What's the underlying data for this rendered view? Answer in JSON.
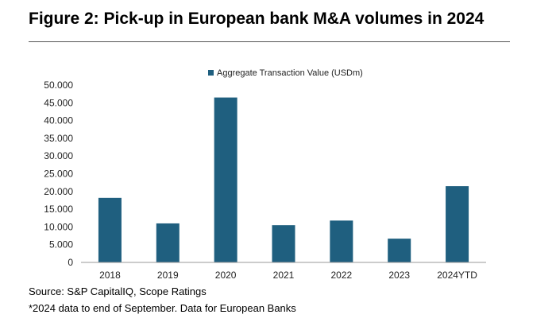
{
  "header": {
    "title": "Figure 2: Pick-up in European bank M&A volumes in 2024"
  },
  "footer": {
    "source": "Source: S&P CapitalIQ, Scope Ratings",
    "note": "*2024 data to end of September. Data for European Banks"
  },
  "chart_data": {
    "type": "bar",
    "categories": [
      "2018",
      "2019",
      "2020",
      "2021",
      "2022",
      "2023",
      "2024YTD"
    ],
    "series": [
      {
        "name": "Aggregate Transaction Value (USDm)",
        "values": [
          18200,
          11000,
          46500,
          10500,
          11800,
          6700,
          21500
        ],
        "color": "#1f5f7f"
      }
    ],
    "ylim": [
      0,
      50000
    ],
    "yticks": [
      0,
      5000,
      10000,
      15000,
      20000,
      25000,
      30000,
      35000,
      40000,
      45000,
      50000
    ],
    "ytick_labels": [
      "0",
      "5.000",
      "10.000",
      "15.000",
      "20.000",
      "25.000",
      "30.000",
      "35.000",
      "40.000",
      "45.000",
      "50.000"
    ],
    "grid": false,
    "legend_position": "top"
  }
}
